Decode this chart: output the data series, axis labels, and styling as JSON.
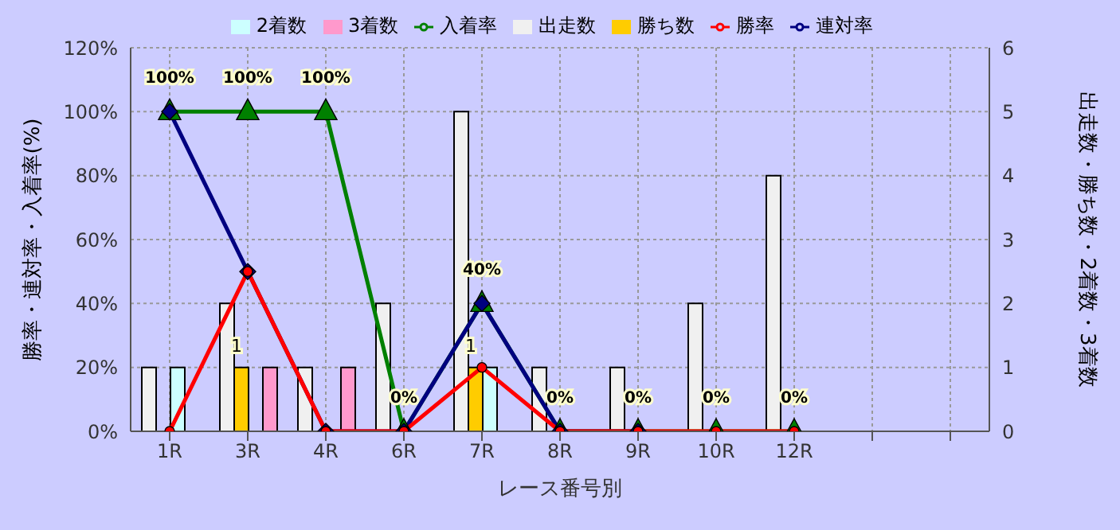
{
  "chart_data": {
    "type": "bar",
    "xlabel": "レース番号別",
    "ylabel": "勝率・連対率・入着率(%)",
    "y2label": "出走数・勝ち数・2着数・3着数",
    "categories": [
      "1R",
      "3R",
      "4R",
      "6R",
      "7R",
      "8R",
      "9R",
      "10R",
      "12R",
      null,
      null
    ],
    "series": [
      {
        "name": "出走数",
        "type": "bar",
        "axis": "y2",
        "color": "#f0f0f0",
        "values": [
          1,
          2,
          1,
          2,
          5,
          1,
          1,
          2,
          4,
          null,
          null
        ]
      },
      {
        "name": "勝ち数",
        "type": "bar",
        "axis": "y2",
        "color": "#ffcc00",
        "values": [
          0,
          1,
          0,
          0,
          1,
          0,
          0,
          0,
          0,
          null,
          null
        ],
        "value_labels": [
          null,
          "1",
          null,
          null,
          "1",
          null,
          null,
          null,
          null,
          null,
          null
        ]
      },
      {
        "name": "2着数",
        "type": "bar",
        "axis": "y2",
        "color": "#ccffff",
        "values": [
          1,
          0,
          0,
          0,
          1,
          0,
          0,
          0,
          0,
          null,
          null
        ]
      },
      {
        "name": "3着数",
        "type": "bar",
        "axis": "y2",
        "color": "#ff99cc",
        "values": [
          0,
          1,
          1,
          0,
          0,
          0,
          0,
          0,
          0,
          null,
          null
        ]
      },
      {
        "name": "入着率",
        "type": "line",
        "color": "#008000",
        "marker": "triangle",
        "values": [
          100,
          100,
          100,
          0,
          40,
          0,
          0,
          0,
          0,
          null,
          null
        ],
        "value_labels": [
          "100%",
          "100%",
          "100%",
          "0%",
          "40%",
          "0%",
          "0%",
          "0%",
          "0%",
          null,
          null
        ]
      },
      {
        "name": "連対率",
        "type": "line",
        "color": "#000080",
        "marker": "diamond",
        "values": [
          100,
          50,
          0,
          0,
          40,
          0,
          0,
          null,
          null,
          null,
          null
        ]
      },
      {
        "name": "勝率",
        "type": "line",
        "color": "#ff0000",
        "marker": "circle",
        "values": [
          0,
          50,
          0,
          0,
          20,
          0,
          0,
          0,
          0,
          null,
          null
        ]
      }
    ],
    "ylim": [
      0,
      120
    ],
    "yticks": [
      {
        "value": 0,
        "label": "0%"
      },
      {
        "value": 20,
        "label": "20%"
      },
      {
        "value": 40,
        "label": "40%"
      },
      {
        "value": 60,
        "label": "60%"
      },
      {
        "value": 80,
        "label": "80%"
      },
      {
        "value": 100,
        "label": "100%"
      },
      {
        "value": 120,
        "label": "120%"
      }
    ],
    "y2lim": [
      0,
      6
    ],
    "y2ticks": [
      0,
      1,
      2,
      3,
      4,
      5,
      6
    ],
    "grid": true,
    "legend": "top"
  }
}
